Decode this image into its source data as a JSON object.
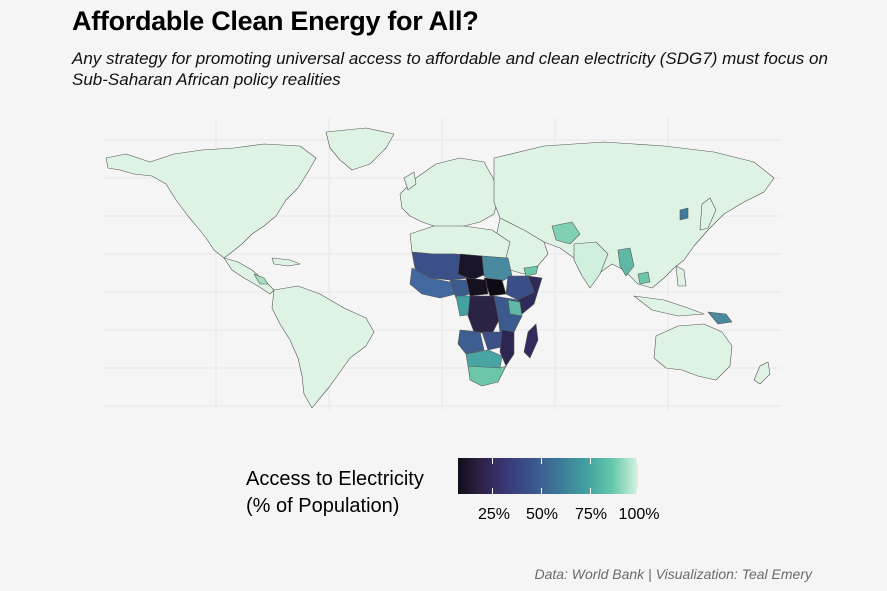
{
  "title": "Affordable Clean Energy for All?",
  "subtitle": "Any strategy for promoting universal access to affordable and clean electricity (SDG7) must focus on Sub-Saharan African policy realities",
  "legend": {
    "title_line1": "Access to Electricity",
    "title_line2": "(% of Population)",
    "ticks": [
      "25%",
      "50%",
      "75%",
      "100%"
    ],
    "colors": {
      "low": "#130d1a",
      "mid_low": "#3a3a7a",
      "mid": "#3d7d98",
      "mid_high": "#43a2a0",
      "high": "#d6f3e0"
    }
  },
  "caption": "Data: World Bank | Visualization: Teal Emery",
  "map_colors": {
    "land_full_access": "#dff3e4",
    "border": "#555555",
    "background": "#f5f5f5",
    "grid": "#e6e6e6"
  }
}
